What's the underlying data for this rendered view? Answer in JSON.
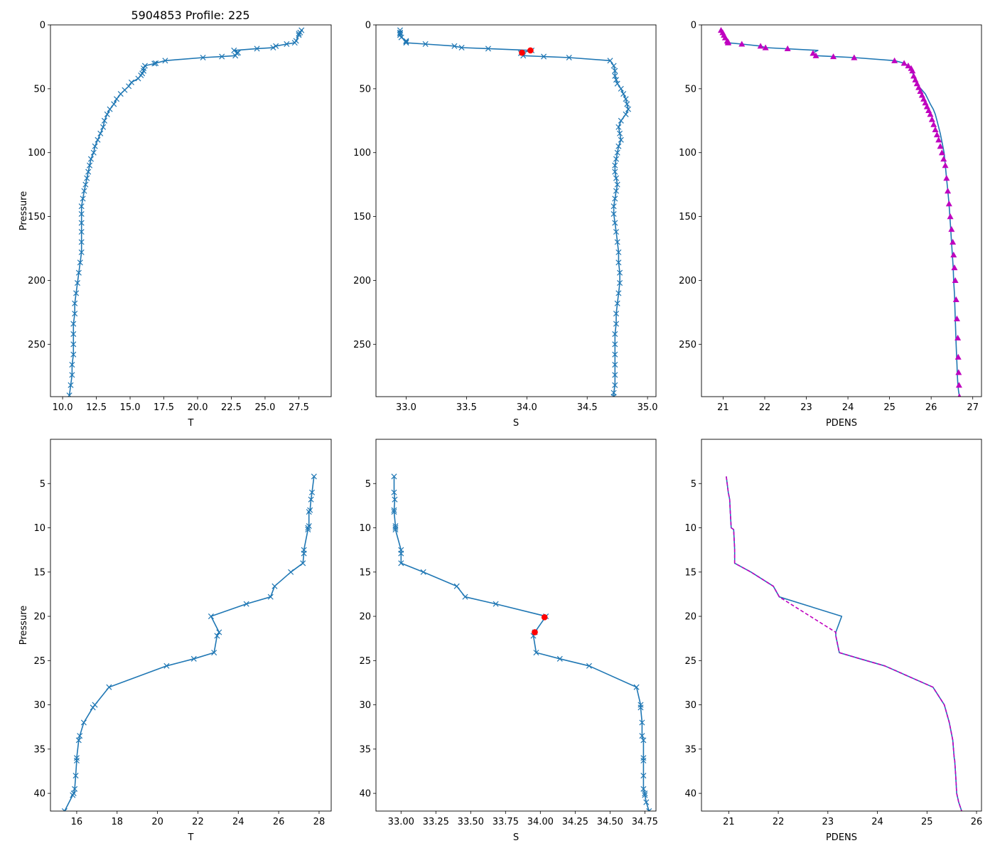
{
  "figure": {
    "suptitle": "5904853 Profile: 225"
  },
  "chart_data": [
    {
      "id": "top-temperature",
      "type": "line",
      "title": "5904853 Profile: 225",
      "xlabel": "T",
      "ylabel": "Pressure",
      "xlim": [
        9.1,
        29.9
      ],
      "ylim": [
        291,
        0
      ],
      "y_inverted": true,
      "xticks": [
        10.0,
        12.5,
        15.0,
        17.5,
        20.0,
        22.5,
        25.0,
        27.5
      ],
      "yticks": [
        0,
        50,
        100,
        150,
        200,
        250
      ],
      "series": [
        {
          "name": "T",
          "color": "#1f77b4",
          "marker": "x",
          "x": [
            27.7,
            27.6,
            27.5,
            27.5,
            27.3,
            27.2,
            26.6,
            25.8,
            25.6,
            24.4,
            22.7,
            23.0,
            22.9,
            22.8,
            21.8,
            20.4,
            17.6,
            16.9,
            16.8,
            16.1,
            16.0,
            16.0,
            15.9,
            15.8,
            15.6,
            15.1,
            14.9,
            14.6,
            14.3,
            14.0,
            13.8,
            13.5,
            13.3,
            13.1,
            13.0,
            12.8,
            12.6,
            12.4,
            12.3,
            12.1,
            12.0,
            11.9,
            11.8,
            11.7,
            11.6,
            11.5,
            11.4,
            11.4,
            11.4,
            11.4,
            11.4,
            11.4,
            11.3,
            11.2,
            11.1,
            11.0,
            10.9,
            10.9,
            10.8,
            10.8,
            10.8,
            10.8,
            10.7,
            10.7,
            10.6,
            10.5
          ],
          "y": [
            4.2,
            6.0,
            6.8,
            8.0,
            12.5,
            14.0,
            15.0,
            16.6,
            17.8,
            18.6,
            20.0,
            21.8,
            22.2,
            24.1,
            24.8,
            25.6,
            28.0,
            30.0,
            30.3,
            32.0,
            34.0,
            36.0,
            38.0,
            39.5,
            42,
            45,
            48,
            51,
            54,
            58,
            62,
            66,
            70,
            75,
            80,
            85,
            90,
            95,
            100,
            105,
            110,
            115,
            120,
            125,
            130,
            136,
            142,
            148,
            155,
            162,
            170,
            178,
            186,
            194,
            202,
            210,
            218,
            226,
            234,
            242,
            250,
            258,
            266,
            274,
            282,
            290
          ]
        }
      ]
    },
    {
      "id": "top-salinity",
      "type": "line",
      "title": "",
      "xlabel": "S",
      "ylabel": "",
      "xlim": [
        32.75,
        35.07
      ],
      "ylim": [
        291,
        0
      ],
      "y_inverted": true,
      "xticks": [
        33.0,
        33.5,
        34.0,
        34.5,
        35.0
      ],
      "yticks": [
        0,
        50,
        100,
        150,
        200,
        250
      ],
      "series": [
        {
          "name": "S",
          "color": "#1f77b4",
          "marker": "x",
          "x": [
            32.95,
            32.95,
            32.95,
            32.95,
            32.96,
            33.0,
            33.0,
            33.0,
            33.16,
            33.4,
            33.46,
            33.68,
            34.04,
            33.96,
            33.95,
            33.97,
            34.14,
            34.35,
            34.69,
            34.72,
            34.73,
            34.73,
            34.74,
            34.75,
            34.78,
            34.8,
            34.82,
            34.83,
            34.84,
            34.82,
            34.78,
            34.76,
            34.77,
            34.78,
            34.76,
            34.75,
            34.74,
            34.73,
            34.73,
            34.74,
            34.75,
            34.74,
            34.73,
            34.72,
            34.72,
            34.73,
            34.74,
            34.75,
            34.76,
            34.76,
            34.77,
            34.77,
            34.76,
            34.75,
            34.74,
            34.74,
            34.73,
            34.73,
            34.73,
            34.73,
            34.73,
            34.73,
            34.72,
            34.72
          ],
          "y": [
            4.2,
            6.0,
            6.8,
            8.0,
            9.8,
            12.5,
            13.2,
            14.0,
            15.0,
            16.6,
            17.8,
            18.6,
            20.0,
            21.8,
            22.2,
            24.1,
            24.8,
            25.6,
            28.0,
            32,
            36,
            40,
            43,
            46,
            50,
            54,
            58,
            62,
            66,
            70,
            75,
            80,
            85,
            90,
            95,
            100,
            105,
            110,
            115,
            120,
            125,
            130,
            136,
            142,
            148,
            155,
            162,
            170,
            178,
            186,
            194,
            202,
            210,
            218,
            226,
            234,
            242,
            250,
            258,
            266,
            274,
            282,
            288,
            291
          ]
        },
        {
          "name": "flagged",
          "color": "#ff0000",
          "marker": "o",
          "x": [
            34.03,
            33.96
          ],
          "y": [
            20.0,
            21.8
          ]
        }
      ]
    },
    {
      "id": "top-density",
      "type": "line",
      "title": "",
      "xlabel": "PDENS",
      "ylabel": "",
      "xlim": [
        20.48,
        27.21
      ],
      "ylim": [
        291,
        0
      ],
      "y_inverted": true,
      "xticks": [
        21,
        22,
        23,
        24,
        25,
        26,
        27
      ],
      "yticks": [
        0,
        50,
        100,
        150,
        200,
        250
      ],
      "series": [
        {
          "name": "PDENS",
          "color": "#1f77b4",
          "marker": "none",
          "x": [
            20.95,
            20.99,
            21.02,
            21.05,
            21.1,
            21.12,
            21.12,
            21.45,
            21.9,
            22.02,
            23.28,
            23.16,
            23.16,
            23.23,
            23.65,
            24.15,
            25.12,
            25.35,
            25.45,
            25.52,
            25.55,
            25.56,
            25.58,
            25.6,
            25.64,
            25.7,
            25.78,
            25.86,
            25.92,
            25.98,
            26.05,
            26.1,
            26.14,
            26.18,
            26.22,
            26.25,
            26.28,
            26.31,
            26.34,
            26.37,
            26.4,
            26.43,
            26.45,
            26.47,
            26.49,
            26.51,
            26.53,
            26.54,
            26.56,
            26.57,
            26.58,
            26.59,
            26.6,
            26.61,
            26.62,
            26.63,
            26.64,
            26.65,
            26.66,
            26.67,
            26.68
          ],
          "y": [
            4.2,
            6.0,
            8.0,
            10.0,
            12.5,
            13.2,
            14.0,
            15.0,
            16.6,
            17.8,
            20.0,
            21.8,
            22.2,
            24.1,
            24.8,
            25.6,
            28.0,
            30.0,
            32.0,
            34.0,
            36.0,
            38.0,
            40.0,
            42,
            45,
            48,
            51,
            54,
            58,
            62,
            66,
            70,
            75,
            80,
            85,
            90,
            95,
            100,
            110,
            120,
            130,
            140,
            150,
            160,
            170,
            180,
            190,
            200,
            210,
            220,
            230,
            240,
            250,
            258,
            266,
            274,
            280,
            284,
            287,
            289,
            291
          ]
        },
        {
          "name": "PDENS-markers",
          "color": "#bf00bf",
          "marker": "^",
          "x": [
            20.95,
            20.99,
            21.02,
            21.05,
            21.1,
            21.12,
            21.12,
            21.45,
            21.9,
            22.02,
            22.55,
            23.16,
            23.23,
            23.65,
            24.15,
            25.12,
            25.35,
            25.45,
            25.52,
            25.55,
            25.58,
            25.62,
            25.66,
            25.7,
            25.74,
            25.78,
            25.82,
            25.86,
            25.9,
            25.94,
            25.98,
            26.02,
            26.06,
            26.1,
            26.14,
            26.18,
            26.22,
            26.26,
            26.3,
            26.34,
            26.37,
            26.4,
            26.43,
            26.46,
            26.49,
            26.52,
            26.54,
            26.56,
            26.58,
            26.6,
            26.62,
            26.64,
            26.65,
            26.66,
            26.67,
            26.68
          ],
          "y": [
            4.2,
            6.0,
            8.0,
            10.0,
            12.5,
            13.2,
            14.0,
            15.0,
            16.6,
            17.8,
            18.6,
            22.2,
            24.1,
            24.8,
            25.6,
            28.0,
            30.0,
            32.0,
            34.0,
            36.0,
            40,
            43,
            46,
            49,
            52,
            55,
            58,
            61,
            64,
            67,
            70,
            74,
            78,
            82,
            86,
            90,
            95,
            100,
            105,
            110,
            120,
            130,
            140,
            150,
            160,
            170,
            180,
            190,
            200,
            215,
            230,
            245,
            260,
            272,
            282,
            291
          ]
        }
      ]
    },
    {
      "id": "bottom-temperature",
      "type": "line",
      "title": "",
      "xlabel": "T",
      "ylabel": "Pressure",
      "xlim": [
        14.7,
        28.6
      ],
      "ylim": [
        42,
        0
      ],
      "y_inverted": true,
      "xticks": [
        16,
        18,
        20,
        22,
        24,
        26,
        28
      ],
      "yticks": [
        5,
        10,
        15,
        20,
        25,
        30,
        35,
        40
      ],
      "series": [
        {
          "name": "T",
          "color": "#1f77b4",
          "marker": "x",
          "x": [
            27.75,
            27.65,
            27.6,
            27.55,
            27.5,
            27.5,
            27.45,
            27.45,
            27.25,
            27.25,
            27.2,
            26.6,
            25.8,
            25.6,
            24.4,
            22.65,
            23.05,
            22.95,
            22.8,
            21.8,
            20.45,
            17.6,
            16.9,
            16.8,
            16.35,
            16.15,
            16.1,
            16.0,
            16.0,
            15.95,
            15.9,
            15.85,
            15.8,
            15.4
          ],
          "y": [
            4.2,
            6.0,
            6.8,
            8.0,
            8.2,
            9.8,
            10.0,
            10.2,
            12.5,
            12.9,
            14.0,
            15.0,
            16.6,
            17.8,
            18.6,
            20.0,
            21.8,
            22.2,
            24.1,
            24.8,
            25.6,
            28.0,
            30.0,
            30.3,
            32.0,
            33.5,
            34.0,
            36.0,
            36.3,
            38.0,
            39.5,
            40.0,
            40.2,
            42.0
          ]
        }
      ]
    },
    {
      "id": "bottom-salinity",
      "type": "line",
      "title": "",
      "xlabel": "S",
      "ylabel": "",
      "xlim": [
        32.82,
        34.83
      ],
      "ylim": [
        42,
        0
      ],
      "y_inverted": true,
      "xticks": [
        33.0,
        33.25,
        33.5,
        33.75,
        34.0,
        34.25,
        34.5,
        34.75
      ],
      "yticks": [
        5,
        10,
        15,
        20,
        25,
        30,
        35,
        40
      ],
      "series": [
        {
          "name": "S",
          "color": "#1f77b4",
          "marker": "x",
          "x": [
            32.95,
            32.95,
            32.955,
            32.95,
            32.95,
            32.96,
            32.96,
            32.96,
            33.0,
            33.0,
            33.0,
            33.16,
            33.4,
            33.46,
            33.68,
            34.04,
            33.96,
            33.95,
            33.97,
            34.14,
            34.35,
            34.69,
            34.72,
            34.72,
            34.73,
            34.73,
            34.74,
            34.74,
            34.74,
            34.74,
            34.74,
            34.75,
            34.75,
            34.76,
            34.78
          ],
          "y": [
            4.2,
            6.0,
            6.8,
            8.0,
            8.2,
            9.8,
            10.0,
            10.2,
            12.5,
            12.9,
            14.0,
            15.0,
            16.6,
            17.8,
            18.6,
            20.0,
            21.8,
            22.2,
            24.1,
            24.8,
            25.6,
            28.0,
            30.0,
            30.3,
            32.0,
            33.5,
            34.0,
            36.0,
            36.3,
            38.0,
            39.5,
            40.0,
            40.2,
            41.0,
            42.0
          ]
        },
        {
          "name": "flagged",
          "color": "#ff0000",
          "marker": "o",
          "x": [
            34.03,
            33.96
          ],
          "y": [
            20.1,
            21.8
          ]
        }
      ]
    },
    {
      "id": "bottom-density",
      "type": "line",
      "title": "",
      "xlabel": "PDENS",
      "ylabel": "",
      "xlim": [
        20.45,
        26.1
      ],
      "ylim": [
        42,
        0
      ],
      "y_inverted": true,
      "xticks": [
        21,
        22,
        23,
        24,
        25,
        26
      ],
      "yticks": [
        5,
        10,
        15,
        20,
        25,
        30,
        35,
        40
      ],
      "series": [
        {
          "name": "PDENS",
          "color": "#1f77b4",
          "marker": "none",
          "x": [
            20.95,
            20.99,
            21.02,
            21.03,
            21.05,
            21.1,
            21.12,
            21.12,
            21.45,
            21.9,
            22.02,
            23.28,
            23.16,
            23.16,
            23.23,
            23.65,
            24.15,
            25.12,
            25.35,
            25.45,
            25.52,
            25.55,
            25.56,
            25.58,
            25.6,
            25.64,
            25.7
          ],
          "y": [
            4.2,
            6.0,
            6.8,
            8.0,
            10.0,
            10.2,
            12.5,
            14.0,
            15.0,
            16.6,
            17.8,
            20.0,
            21.8,
            22.2,
            24.1,
            24.8,
            25.6,
            28.0,
            30.0,
            32.0,
            34.0,
            36.0,
            36.3,
            38.0,
            40.0,
            41.0,
            42.0
          ]
        },
        {
          "name": "PDENS-dashed",
          "color": "#bf00bf",
          "marker": "none",
          "dashed": true,
          "x": [
            20.95,
            20.99,
            21.02,
            21.03,
            21.05,
            21.1,
            21.12,
            21.12,
            21.45,
            21.9,
            22.02,
            23.16,
            23.16,
            23.23,
            23.65,
            24.15,
            25.12,
            25.35,
            25.45,
            25.52,
            25.55,
            25.56,
            25.58,
            25.6,
            25.64,
            25.7
          ],
          "y": [
            4.2,
            6.0,
            6.8,
            8.0,
            10.0,
            10.2,
            12.5,
            14.0,
            15.0,
            16.6,
            17.8,
            21.8,
            22.2,
            24.1,
            24.8,
            25.6,
            28.0,
            30.0,
            32.0,
            34.0,
            36.0,
            36.3,
            38.0,
            40.0,
            41.0,
            42.0
          ]
        }
      ]
    }
  ]
}
